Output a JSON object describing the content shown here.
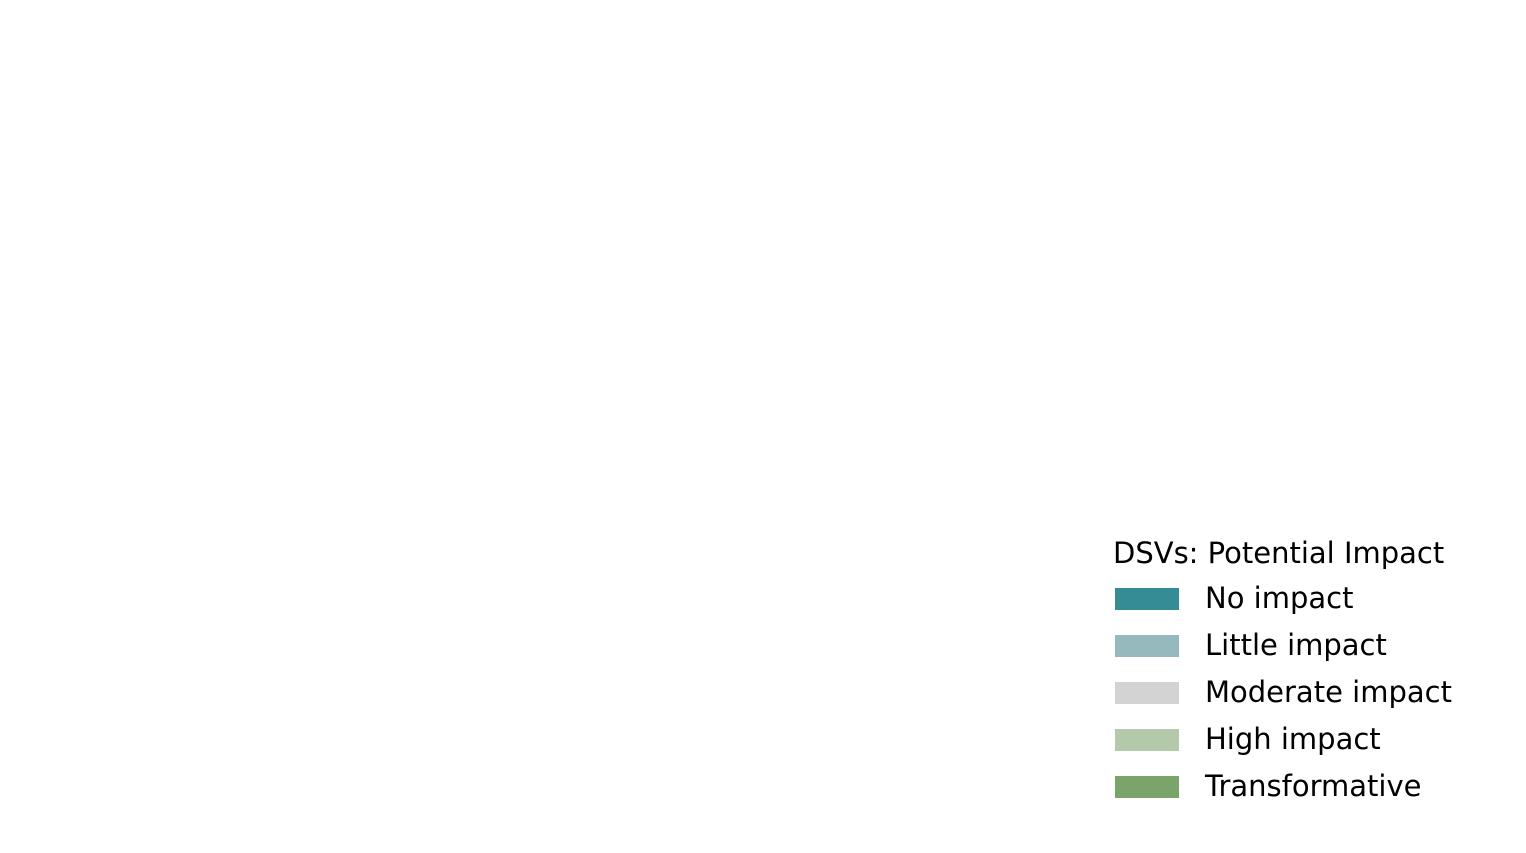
{
  "chart_data": {
    "type": "bar",
    "title": "",
    "xlabel": "",
    "ylabel": "",
    "categories": [],
    "series": [],
    "grid": false,
    "legend": {
      "title": "DSVs: Potential Impact",
      "placement": "bottom-right",
      "entries": [
        {
          "label": "No impact",
          "color": "#368c94"
        },
        {
          "label": "Little impact",
          "color": "#96b9be"
        },
        {
          "label": "Moderate impact",
          "color": "#d3d3d3"
        },
        {
          "label": "High impact",
          "color": "#b4c9a9"
        },
        {
          "label": "Transformative",
          "color": "#7aa46a"
        }
      ]
    }
  }
}
